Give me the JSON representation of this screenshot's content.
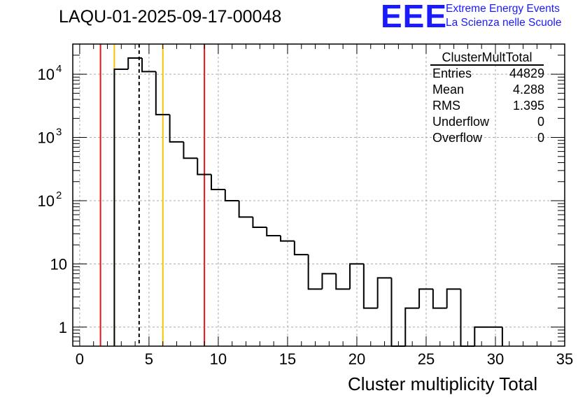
{
  "header": {
    "run_title": "LAQU-01-2025-09-17-00048",
    "logo_text": "EEE",
    "logo_line1": "Extreme Energy Events",
    "logo_line2": "La Scienza nelle Scuole",
    "logo_color": "#1a1aff"
  },
  "stats_box": {
    "title": "ClusterMultTotal",
    "rows": [
      {
        "label": "Entries",
        "value": "44829"
      },
      {
        "label": "Mean",
        "value": "4.288"
      },
      {
        "label": "RMS",
        "value": "1.395"
      },
      {
        "label": "Underflow",
        "value": "0"
      },
      {
        "label": "Overflow",
        "value": "0"
      }
    ]
  },
  "chart_data": {
    "type": "bar",
    "histogram": true,
    "xlabel": "Cluster multiplicity Total",
    "ylabel": "",
    "xlim": [
      -0.5,
      35
    ],
    "ylim": [
      0.5,
      30000
    ],
    "yscale": "log",
    "grid": true,
    "x_ticks": [
      0,
      5,
      10,
      15,
      20,
      25,
      30,
      35
    ],
    "y_ticks": [
      {
        "value": 1,
        "base": "1",
        "exp": ""
      },
      {
        "value": 10,
        "base": "10",
        "exp": ""
      },
      {
        "value": 100,
        "base": "10",
        "exp": "2"
      },
      {
        "value": 1000,
        "base": "10",
        "exp": "3"
      },
      {
        "value": 10000,
        "base": "10",
        "exp": "4"
      }
    ],
    "bin_width": 1,
    "bin_low_edges": [
      2.5,
      3.5,
      4.5,
      5.5,
      6.5,
      7.5,
      8.5,
      9.5,
      10.5,
      11.5,
      12.5,
      13.5,
      14.5,
      15.5,
      16.5,
      17.5,
      18.5,
      19.5,
      20.5,
      21.5,
      22.5,
      23.5,
      24.5,
      25.5,
      26.5,
      27.5,
      28.5,
      29.5
    ],
    "values": [
      12000,
      18000,
      11000,
      2300,
      850,
      470,
      260,
      150,
      100,
      55,
      38,
      28,
      23,
      14,
      4,
      7,
      4,
      10,
      2,
      6,
      0,
      2,
      4,
      2,
      4,
      0,
      1,
      1
    ],
    "vertical_lines": [
      {
        "x": 1.5,
        "color": "#e8141a",
        "style": "solid"
      },
      {
        "x": 2.5,
        "color": "#f5c400",
        "style": "solid"
      },
      {
        "x": 4.288,
        "color": "#000000",
        "style": "dashed"
      },
      {
        "x": 6.0,
        "color": "#f5c400",
        "style": "solid"
      },
      {
        "x": 9.0,
        "color": "#e8141a",
        "style": "solid"
      }
    ]
  }
}
